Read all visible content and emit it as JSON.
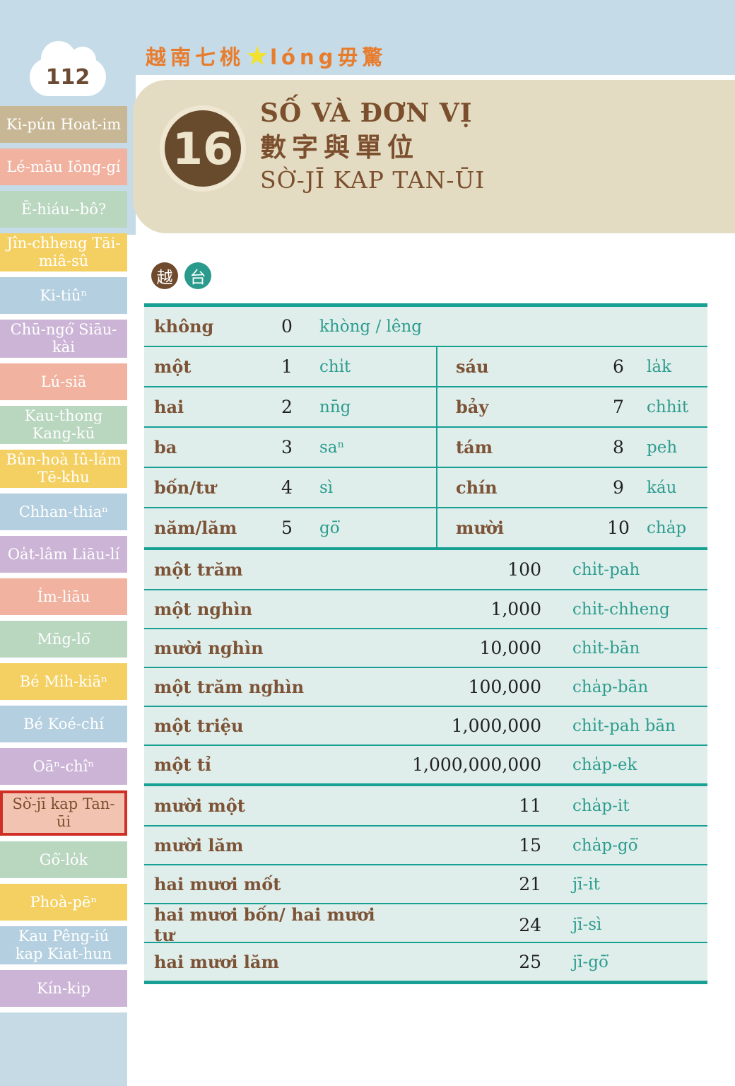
{
  "page_number": "112",
  "brand": {
    "left": "越南七桃",
    "star": "★",
    "right": "lóng毋驚"
  },
  "chapter": {
    "number": "16",
    "title_vi": "SỐ VÀ ĐƠN VỊ",
    "title_zh": "數字與單位",
    "title_tw": "SÒ͘-JĪ KAP TAN-ŪI"
  },
  "badges": {
    "viet": "越",
    "taiwan": "台"
  },
  "sidebar": {
    "items": [
      {
        "label": "Ki-pún Hoat-im",
        "color": "tan",
        "active": false
      },
      {
        "label": "Lé-māu Iōng-gí",
        "color": "salmon",
        "active": false
      },
      {
        "label": "Ē-hiáu--bô?",
        "color": "green",
        "active": false
      },
      {
        "label": "Jîn-chheng Tāi-miâ-sû",
        "color": "yellow",
        "active": false
      },
      {
        "label": "Ki-tiûⁿ",
        "color": "blue",
        "active": false
      },
      {
        "label": "Chū-ngó͘ Siāu-kài",
        "color": "lavender",
        "active": false
      },
      {
        "label": "Lú-siā",
        "color": "salmon",
        "active": false
      },
      {
        "label": "Kau-thong Kang-kū",
        "color": "green",
        "active": false
      },
      {
        "label": "Bûn-hoà Iû-lám Tē-khu",
        "color": "yellow",
        "active": false
      },
      {
        "label": "Chhan-thiaⁿ",
        "color": "blue",
        "active": false
      },
      {
        "label": "Oa̍t-lâm Liāu-lí",
        "color": "lavender",
        "active": false
      },
      {
        "label": "Ím-liāu",
        "color": "salmon",
        "active": false
      },
      {
        "label": "Mn̄g-lō͘",
        "color": "green",
        "active": false
      },
      {
        "label": "Bé Mi̍h-kiāⁿ",
        "color": "yellow",
        "active": false
      },
      {
        "label": "Bé Koé-chí",
        "color": "blue",
        "active": false
      },
      {
        "label": "Oāⁿ-chîⁿ",
        "color": "lavender",
        "active": false
      },
      {
        "label": "Sò͘-jī kap Tan-ūi",
        "color": "pink-active",
        "active": true
      },
      {
        "label": "Gô͘-lo̍k",
        "color": "green",
        "active": false
      },
      {
        "label": "Phoà-pēⁿ",
        "color": "yellow",
        "active": false
      },
      {
        "label": "Kau Pêng-iú kap Kiat-hun",
        "color": "blue",
        "active": false
      },
      {
        "label": "Kín-kip",
        "color": "lavender",
        "active": false
      },
      {
        "label": "",
        "color": "blank",
        "active": false
      }
    ]
  },
  "table": {
    "basic": {
      "full": {
        "vi": "không",
        "num": "0",
        "tw": "khòng / lêng"
      },
      "pairs": [
        {
          "l": {
            "vi": "một",
            "num": "1",
            "tw": "chi̍t"
          },
          "r": {
            "vi": "sáu",
            "num": "6",
            "tw": "la̍k"
          }
        },
        {
          "l": {
            "vi": "hai",
            "num": "2",
            "tw": "nn̄g"
          },
          "r": {
            "vi": "bảy",
            "num": "7",
            "tw": "chhit"
          }
        },
        {
          "l": {
            "vi": "ba",
            "num": "3",
            "tw": "saⁿ"
          },
          "r": {
            "vi": "tám",
            "num": "8",
            "tw": "peh"
          }
        },
        {
          "l": {
            "vi": "bốn/tư",
            "num": "4",
            "tw": "sì"
          },
          "r": {
            "vi": "chín",
            "num": "9",
            "tw": "káu"
          }
        },
        {
          "l": {
            "vi": "năm/lăm",
            "num": "5",
            "tw": "gō͘"
          },
          "r": {
            "vi": "mười",
            "num": "10",
            "tw": "cha̍p"
          }
        }
      ]
    },
    "hundreds": {
      "rows": [
        {
          "vi": "một trăm",
          "num": "100",
          "tw": "chi̍t-pah"
        },
        {
          "vi": "một nghìn",
          "num": "1,000",
          "tw": "chi̍t-chheng"
        },
        {
          "vi": "mười nghìn",
          "num": "10,000",
          "tw": "chi̍t-bān"
        },
        {
          "vi": "một trăm nghìn",
          "num": "100,000",
          "tw": "cha̍p-bān"
        },
        {
          "vi": "một triệu",
          "num": "1,000,000",
          "tw": "chi̍t-pah bān"
        },
        {
          "vi": "một tỉ",
          "num": "1,000,000,000",
          "tw": "cha̍p-ek"
        }
      ]
    },
    "teens": {
      "rows": [
        {
          "vi": "mười một",
          "num": "11",
          "tw": "cha̍p-it"
        },
        {
          "vi": "mười lăm",
          "num": "15",
          "tw": "cha̍p-gō͘"
        },
        {
          "vi": "hai mươi mốt",
          "num": "21",
          "tw": "jī-it"
        },
        {
          "vi": "hai mươi bốn/ hai mươi tư",
          "num": "24",
          "tw": "jī-sì"
        },
        {
          "vi": "hai mươi lăm",
          "num": "25",
          "tw": "jī-gō͘"
        }
      ]
    }
  },
  "colors": {
    "band_blue": "#c5dbe8",
    "chapter_box_tan": "#e4dcc2",
    "circle_brown": "#684a2d",
    "title_brown": "#7b4f2e",
    "header_orange": "#e87c2d",
    "star_yellow": "#f2e22e",
    "table_bg_mint": "#dfeeea",
    "table_line_teal": "#18a094",
    "tw_text_teal": "#2d9c8f",
    "vi_text_brown": "#7d5337",
    "badge_viet_brown": "#6f4a2c",
    "badge_tw_teal": "#2a9a8c",
    "active_tab_bg": "#f3c3b1",
    "active_tab_border": "#d02f27",
    "tab_tan": "#c8b795",
    "tab_salmon": "#f1b2a0",
    "tab_green": "#b9d6bf",
    "tab_yellow": "#f4d062",
    "tab_blue": "#b4cfdf",
    "tab_lavender": "#ccb4d6",
    "tab_blank_blue": "#c6dae5"
  }
}
